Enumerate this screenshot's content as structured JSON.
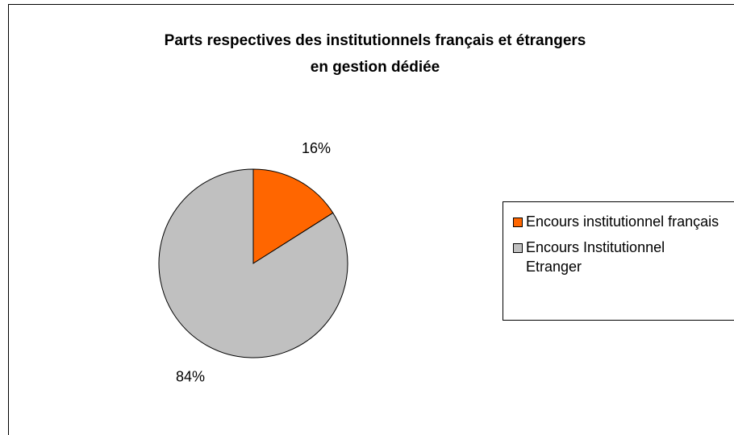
{
  "chart_data": {
    "type": "pie",
    "title": [
      "Parts respectives des institutionnels français et étrangers",
      "en gestion dédiée"
    ],
    "categories": [
      "Encours institutionnel français",
      "Encours Institutionnel Etranger"
    ],
    "values": [
      16,
      84
    ],
    "value_labels": [
      "16%",
      "84%"
    ],
    "colors": [
      "#ff6600",
      "#c0c0c0"
    ],
    "legend": "right"
  }
}
